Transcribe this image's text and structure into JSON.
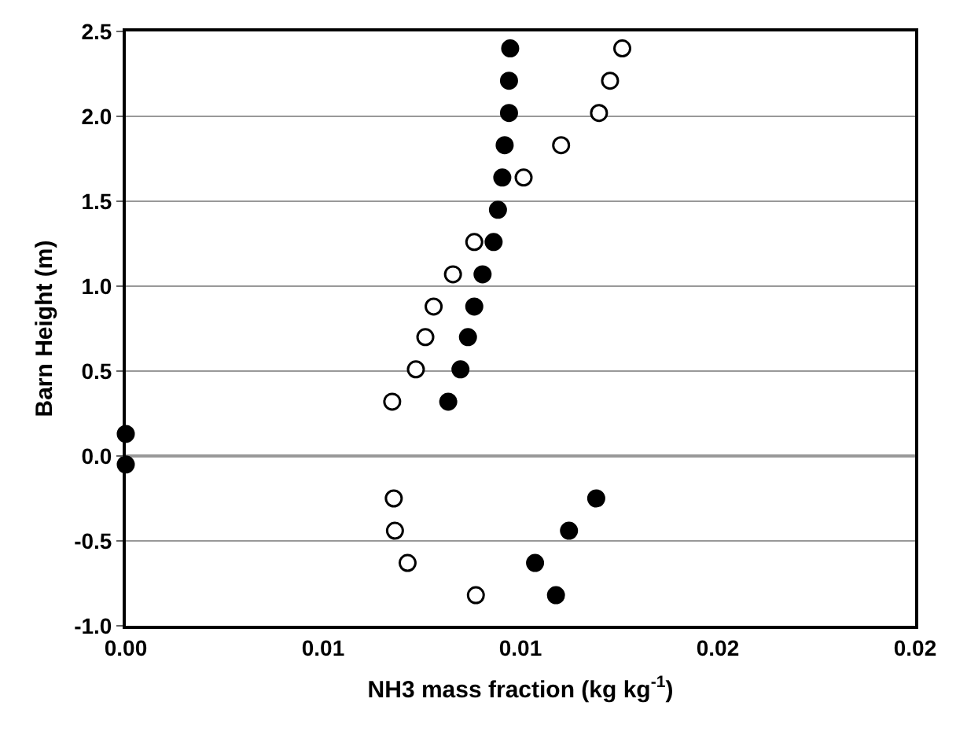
{
  "chart_data": {
    "type": "scatter",
    "xlabel": "NH3 mass fraction (kg kg$^{-1}$)",
    "ylabel": "Barn Height (m)",
    "xlim": [
      0,
      0.02
    ],
    "xticks": [
      {
        "value": 0,
        "label": "0.00"
      },
      {
        "value": 0.005,
        "label": "0.01"
      },
      0.01,
      {
        "value": 0.015,
        "label": "0.02"
      },
      0.02
    ],
    "ylim": [
      -1,
      2.5
    ],
    "yticks": [
      {
        "value": -1,
        "label": "-1.0"
      },
      -0.5,
      {
        "value": 0,
        "label": "0.0"
      },
      0.5,
      {
        "value": 1,
        "label": "1.0"
      },
      1.5,
      {
        "value": 2,
        "label": "2.0"
      },
      2.5
    ],
    "grid": "y",
    "marker": "circle",
    "series": [
      {
        "color": "#000000",
        "x": [
          0.00974,
          0.00971,
          0.00971,
          0.0096,
          0.00954,
          0.00943,
          0.00932,
          0.00904,
          0.00883,
          0.00867,
          0.00848,
          0.00817,
          0,
          0,
          0.01192,
          0.01123,
          0.01037,
          0.0109
        ],
        "values": [
          2.4,
          2.21,
          2.02,
          1.83,
          1.64,
          1.45,
          1.26,
          1.07,
          0.88,
          0.7,
          0.51,
          0.32,
          0.13,
          -0.05,
          -0.25,
          -0.44,
          -0.63,
          -0.82
        ]
      },
      {
        "color": "#ffffff",
        "x": [
          0.01258,
          0.01227,
          0.01199,
          0.01103,
          0.01008,
          0.00883,
          0.00829,
          0.0078,
          0.00759,
          0.00735,
          0.00675,
          0.00679,
          0.00682,
          0.00714,
          0.00887
        ],
        "values": [
          2.4,
          2.21,
          2.02,
          1.83,
          1.64,
          1.26,
          1.07,
          0.88,
          0.7,
          0.51,
          0.32,
          -0.25,
          -0.44,
          -0.63,
          -0.82
        ]
      }
    ]
  }
}
